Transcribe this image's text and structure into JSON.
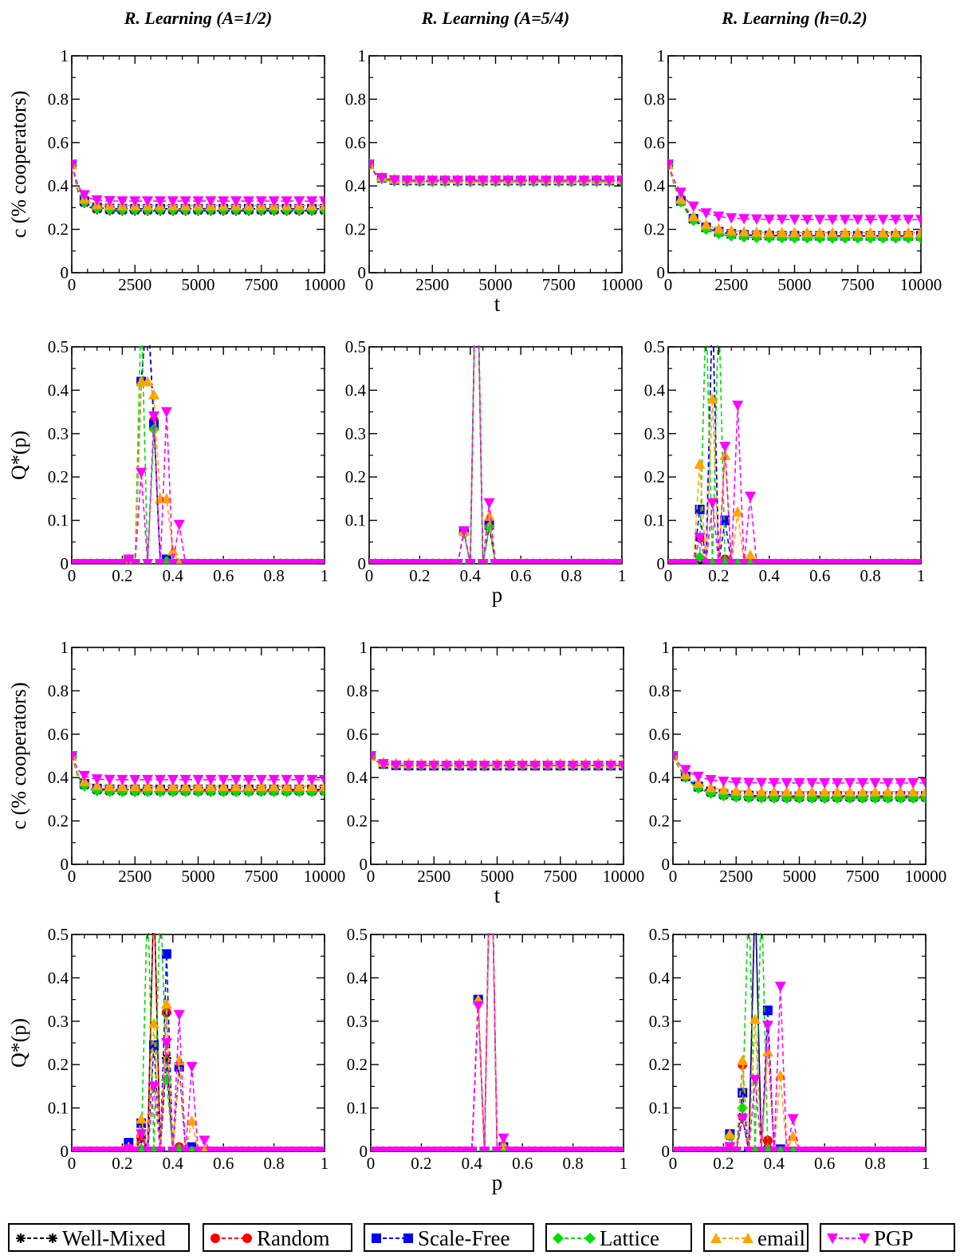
{
  "column_titles": [
    "R. Learning (A=1/2)",
    "R. Learning (A=5/4)",
    "R. Learning (h=0.2)"
  ],
  "shared_labels": {
    "c_ylabel": "c (% cooperators)",
    "q_ylabel": "Q*(p)",
    "t_xlabel": "t",
    "p_xlabel": "p"
  },
  "legend": [
    {
      "name": "Well-Mixed",
      "color": "#000000",
      "marker": "star"
    },
    {
      "name": "Random",
      "color": "#ff0000",
      "marker": "circle"
    },
    {
      "name": "Scale-Free",
      "color": "#0000ff",
      "marker": "square"
    },
    {
      "name": "Lattice",
      "color": "#00dd00",
      "marker": "diamond"
    },
    {
      "name": "email",
      "color": "#ffa500",
      "marker": "triangle-up"
    },
    {
      "name": "PGP",
      "color": "#ff00ff",
      "marker": "triangle-down"
    }
  ],
  "chart_data": [
    {
      "type": "line",
      "row": 1,
      "col": 1,
      "xlim": [
        0,
        10000
      ],
      "ylim": [
        0,
        1
      ],
      "xticks": [
        "0",
        "2500",
        "5000",
        "7500",
        "10000"
      ],
      "yticks": [
        "0",
        "0.2",
        "0.4",
        "0.6",
        "0.8",
        "1"
      ],
      "series": [
        {
          "name": "Well-Mixed",
          "start": 0.5,
          "end": 0.285
        },
        {
          "name": "Random",
          "start": 0.5,
          "end": 0.29
        },
        {
          "name": "Scale-Free",
          "start": 0.5,
          "end": 0.295
        },
        {
          "name": "Lattice",
          "start": 0.5,
          "end": 0.29
        },
        {
          "name": "email",
          "start": 0.5,
          "end": 0.31
        },
        {
          "name": "PGP",
          "start": 0.5,
          "end": 0.33
        }
      ]
    },
    {
      "type": "line",
      "row": 1,
      "col": 2,
      "xlim": [
        0,
        10000
      ],
      "ylim": [
        0,
        1
      ],
      "xticks": [
        "0",
        "2500",
        "5000",
        "7500",
        "10000"
      ],
      "yticks": [
        "0",
        "0.2",
        "0.4",
        "0.6",
        "0.8",
        "1"
      ],
      "series": [
        {
          "name": "Well-Mixed",
          "start": 0.5,
          "end": 0.42
        },
        {
          "name": "Random",
          "start": 0.5,
          "end": 0.425
        },
        {
          "name": "Scale-Free",
          "start": 0.5,
          "end": 0.425
        },
        {
          "name": "Lattice",
          "start": 0.5,
          "end": 0.42
        },
        {
          "name": "email",
          "start": 0.5,
          "end": 0.43
        },
        {
          "name": "PGP",
          "start": 0.5,
          "end": 0.425
        }
      ]
    },
    {
      "type": "line",
      "row": 1,
      "col": 3,
      "xlim": [
        0,
        10000
      ],
      "ylim": [
        0,
        1
      ],
      "xticks": [
        "0",
        "2500",
        "5000",
        "7500",
        "10000"
      ],
      "yticks": [
        "0",
        "0.2",
        "0.4",
        "0.6",
        "0.8",
        "1"
      ],
      "series": [
        {
          "name": "Well-Mixed",
          "start": 0.5,
          "end": 0.17
        },
        {
          "name": "Random",
          "start": 0.5,
          "end": 0.17
        },
        {
          "name": "Scale-Free",
          "start": 0.5,
          "end": 0.17
        },
        {
          "name": "Lattice",
          "start": 0.5,
          "end": 0.16
        },
        {
          "name": "email",
          "start": 0.5,
          "end": 0.185
        },
        {
          "name": "PGP",
          "start": 0.5,
          "end": 0.245
        }
      ]
    },
    {
      "type": "line",
      "row": 2,
      "col": 1,
      "xlim": [
        0,
        1
      ],
      "ylim": [
        0,
        0.5
      ],
      "xticks": [
        "0",
        "0.2",
        "0.4",
        "0.6",
        "0.8",
        "1"
      ],
      "yticks": [
        "0",
        "0.1",
        "0.2",
        "0.3",
        "0.4",
        "0.5"
      ],
      "series": [
        {
          "name": "Well-Mixed",
          "peaks": {
            "0.225": 0.01,
            "0.275": 0.42,
            "0.3": 0.6,
            "0.325": 0.33,
            "0.375": 0.01
          }
        },
        {
          "name": "Random",
          "peaks": {
            "0.225": 0.01,
            "0.275": 0.42,
            "0.3": 0.6,
            "0.325": 0.33,
            "0.375": 0.01
          }
        },
        {
          "name": "Scale-Free",
          "peaks": {
            "0.225": 0.01,
            "0.275": 0.42,
            "0.3": 0.6,
            "0.325": 0.32,
            "0.375": 0.01
          }
        },
        {
          "name": "Lattice",
          "peaks": {
            "0.225": 0.01,
            "0.275": 0.6,
            "0.325": 0.31,
            "0.375": 0.005
          }
        },
        {
          "name": "email",
          "peaks": {
            "0.225": 0.01,
            "0.275": 0.42,
            "0.3": 0.42,
            "0.325": 0.39,
            "0.35": 0.15,
            "0.375": 0.15,
            "0.4": 0.03
          }
        },
        {
          "name": "PGP",
          "peaks": {
            "0.225": 0.01,
            "0.275": 0.21,
            "0.325": 0.34,
            "0.375": 0.35,
            "0.425": 0.09
          }
        }
      ]
    },
    {
      "type": "line",
      "row": 2,
      "col": 2,
      "xlim": [
        0,
        1
      ],
      "ylim": [
        0,
        0.5
      ],
      "xticks": [
        "0",
        "0.2",
        "0.4",
        "0.6",
        "0.8",
        "1"
      ],
      "yticks": [
        "0",
        "0.1",
        "0.2",
        "0.3",
        "0.4",
        "0.5"
      ],
      "series": [
        {
          "name": "Well-Mixed",
          "peaks": {
            "0.375": 0.075,
            "0.425": 0.8,
            "0.475": 0.085
          }
        },
        {
          "name": "Random",
          "peaks": {
            "0.375": 0.075,
            "0.425": 0.8,
            "0.475": 0.09
          }
        },
        {
          "name": "Scale-Free",
          "peaks": {
            "0.375": 0.075,
            "0.425": 0.8,
            "0.475": 0.09
          }
        },
        {
          "name": "Lattice",
          "peaks": {
            "0.375": 0.07,
            "0.425": 0.8,
            "0.475": 0.085
          }
        },
        {
          "name": "email",
          "peaks": {
            "0.375": 0.075,
            "0.425": 0.8,
            "0.475": 0.11
          }
        },
        {
          "name": "PGP",
          "peaks": {
            "0.375": 0.075,
            "0.425": 0.8,
            "0.475": 0.14
          }
        }
      ]
    },
    {
      "type": "line",
      "row": 2,
      "col": 3,
      "xlim": [
        0,
        1
      ],
      "ylim": [
        0,
        0.5
      ],
      "xticks": [
        "0",
        "0.2",
        "0.4",
        "0.6",
        "0.8",
        "1"
      ],
      "yticks": [
        "0",
        "0.1",
        "0.2",
        "0.3",
        "0.4",
        "0.5"
      ],
      "series": [
        {
          "name": "Well-Mixed",
          "peaks": {
            "0.125": 0.005,
            "0.175": 0.6,
            "0.225": 0.01
          }
        },
        {
          "name": "Random",
          "peaks": {
            "0.125": 0.06,
            "0.175": 0.6,
            "0.225": 0.01
          }
        },
        {
          "name": "Scale-Free",
          "peaks": {
            "0.125": 0.125,
            "0.175": 0.6,
            "0.225": 0.1
          }
        },
        {
          "name": "Lattice",
          "peaks": {
            "0.125": 0.015,
            "0.15": 0.6,
            "0.2": 0.6,
            "0.225": 0.005
          }
        },
        {
          "name": "email",
          "peaks": {
            "0.125": 0.23,
            "0.175": 0.38,
            "0.225": 0.25,
            "0.275": 0.12,
            "0.325": 0.02
          }
        },
        {
          "name": "PGP",
          "peaks": {
            "0.125": 0.06,
            "0.175": 0.14,
            "0.225": 0.27,
            "0.275": 0.365,
            "0.325": 0.155
          }
        }
      ]
    },
    {
      "type": "line",
      "row": 3,
      "col": 1,
      "xlim": [
        0,
        10000
      ],
      "ylim": [
        0,
        1
      ],
      "xticks": [
        "0",
        "2500",
        "5000",
        "7500",
        "10000"
      ],
      "yticks": [
        "0",
        "0.2",
        "0.4",
        "0.6",
        "0.8",
        "1"
      ],
      "series": [
        {
          "name": "Well-Mixed",
          "start": 0.5,
          "end": 0.335
        },
        {
          "name": "Random",
          "start": 0.5,
          "end": 0.34
        },
        {
          "name": "Scale-Free",
          "start": 0.5,
          "end": 0.345
        },
        {
          "name": "Lattice",
          "start": 0.5,
          "end": 0.335
        },
        {
          "name": "email",
          "start": 0.5,
          "end": 0.36
        },
        {
          "name": "PGP",
          "start": 0.5,
          "end": 0.39
        }
      ]
    },
    {
      "type": "line",
      "row": 3,
      "col": 2,
      "xlim": [
        0,
        10000
      ],
      "ylim": [
        0,
        1
      ],
      "xticks": [
        "0",
        "2500",
        "5000",
        "7500",
        "10000"
      ],
      "yticks": [
        "0",
        "0.2",
        "0.4",
        "0.6",
        "0.8",
        "1"
      ],
      "series": [
        {
          "name": "Well-Mixed",
          "start": 0.5,
          "end": 0.455
        },
        {
          "name": "Random",
          "start": 0.5,
          "end": 0.455
        },
        {
          "name": "Scale-Free",
          "start": 0.5,
          "end": 0.455
        },
        {
          "name": "Lattice",
          "start": 0.5,
          "end": 0.455
        },
        {
          "name": "email",
          "start": 0.5,
          "end": 0.465
        },
        {
          "name": "PGP",
          "start": 0.5,
          "end": 0.455
        }
      ]
    },
    {
      "type": "line",
      "row": 3,
      "col": 3,
      "xlim": [
        0,
        10000
      ],
      "ylim": [
        0,
        1
      ],
      "xticks": [
        "0",
        "2500",
        "5000",
        "7500",
        "10000"
      ],
      "yticks": [
        "0",
        "0.2",
        "0.4",
        "0.6",
        "0.8",
        "1"
      ],
      "series": [
        {
          "name": "Well-Mixed",
          "start": 0.5,
          "end": 0.305
        },
        {
          "name": "Random",
          "start": 0.5,
          "end": 0.31
        },
        {
          "name": "Scale-Free",
          "start": 0.5,
          "end": 0.315
        },
        {
          "name": "Lattice",
          "start": 0.5,
          "end": 0.305
        },
        {
          "name": "email",
          "start": 0.5,
          "end": 0.335
        },
        {
          "name": "PGP",
          "start": 0.5,
          "end": 0.375
        }
      ]
    },
    {
      "type": "line",
      "row": 4,
      "col": 1,
      "xlim": [
        0,
        1
      ],
      "ylim": [
        0,
        0.5
      ],
      "xticks": [
        "0",
        "0.2",
        "0.4",
        "0.6",
        "0.8",
        "1"
      ],
      "yticks": [
        "0",
        "0.1",
        "0.2",
        "0.3",
        "0.4",
        "0.5"
      ],
      "series": [
        {
          "name": "Well-Mixed",
          "peaks": {
            "0.225": 0.01,
            "0.275": 0.03,
            "0.325": 0.6,
            "0.375": 0.215,
            "0.425": 0.005
          }
        },
        {
          "name": "Random",
          "peaks": {
            "0.225": 0.01,
            "0.275": 0.035,
            "0.325": 0.6,
            "0.375": 0.32,
            "0.425": 0.01
          }
        },
        {
          "name": "Scale-Free",
          "peaks": {
            "0.225": 0.02,
            "0.275": 0.065,
            "0.325": 0.245,
            "0.375": 0.455,
            "0.425": 0.195,
            "0.475": 0.01
          }
        },
        {
          "name": "Lattice",
          "peaks": {
            "0.225": 0.005,
            "0.275": 0.005,
            "0.3": 0.6,
            "0.35": 0.6,
            "0.375": 0.165,
            "0.425": 0.005
          }
        },
        {
          "name": "email",
          "peaks": {
            "0.225": 0.01,
            "0.275": 0.075,
            "0.325": 0.295,
            "0.375": 0.34,
            "0.425": 0.21,
            "0.475": 0.07,
            "0.525": 0.005
          }
        },
        {
          "name": "PGP",
          "peaks": {
            "0.225": 0.005,
            "0.275": 0.04,
            "0.325": 0.15,
            "0.375": 0.25,
            "0.425": 0.315,
            "0.475": 0.195,
            "0.525": 0.025
          }
        }
      ]
    },
    {
      "type": "line",
      "row": 4,
      "col": 2,
      "xlim": [
        0,
        1
      ],
      "ylim": [
        0,
        0.5
      ],
      "xticks": [
        "0",
        "0.2",
        "0.4",
        "0.6",
        "0.8",
        "1"
      ],
      "yticks": [
        "0",
        "0.1",
        "0.2",
        "0.3",
        "0.4",
        "0.5"
      ],
      "series": [
        {
          "name": "Well-Mixed",
          "peaks": {
            "0.425": 0.35,
            "0.475": 0.8,
            "0.525": 0.01
          }
        },
        {
          "name": "Random",
          "peaks": {
            "0.425": 0.35,
            "0.475": 0.8,
            "0.525": 0.01
          }
        },
        {
          "name": "Scale-Free",
          "peaks": {
            "0.425": 0.35,
            "0.475": 0.8,
            "0.525": 0.01
          }
        },
        {
          "name": "Lattice",
          "peaks": {
            "0.425": 0.345,
            "0.475": 0.8,
            "0.525": 0.01
          }
        },
        {
          "name": "email",
          "peaks": {
            "0.425": 0.35,
            "0.475": 0.8,
            "0.525": 0.015
          }
        },
        {
          "name": "PGP",
          "peaks": {
            "0.425": 0.335,
            "0.475": 0.8,
            "0.525": 0.03
          }
        }
      ]
    },
    {
      "type": "line",
      "row": 4,
      "col": 3,
      "xlim": [
        0,
        1
      ],
      "ylim": [
        0,
        0.5
      ],
      "xticks": [
        "0",
        "0.2",
        "0.4",
        "0.6",
        "0.8",
        "1"
      ],
      "yticks": [
        "0",
        "0.1",
        "0.2",
        "0.3",
        "0.4",
        "0.5"
      ],
      "series": [
        {
          "name": "Well-Mixed",
          "peaks": {
            "0.225": 0.035,
            "0.275": 0.08,
            "0.325": 0.6,
            "0.375": 0.025
          }
        },
        {
          "name": "Random",
          "peaks": {
            "0.225": 0.04,
            "0.275": 0.2,
            "0.325": 0.6,
            "0.375": 0.025
          }
        },
        {
          "name": "Scale-Free",
          "peaks": {
            "0.225": 0.04,
            "0.275": 0.135,
            "0.325": 0.6,
            "0.375": 0.325,
            "0.425": 0.005
          }
        },
        {
          "name": "Lattice",
          "peaks": {
            "0.225": 0.035,
            "0.275": 0.1,
            "0.3": 0.6,
            "0.35": 0.6,
            "0.375": 0.005
          }
        },
        {
          "name": "email",
          "peaks": {
            "0.225": 0.04,
            "0.275": 0.21,
            "0.325": 0.305,
            "0.375": 0.23,
            "0.425": 0.175,
            "0.475": 0.035
          }
        },
        {
          "name": "PGP",
          "peaks": {
            "0.225": 0.01,
            "0.275": 0.075,
            "0.325": 0.165,
            "0.375": 0.29,
            "0.425": 0.38,
            "0.475": 0.075
          }
        }
      ]
    }
  ]
}
